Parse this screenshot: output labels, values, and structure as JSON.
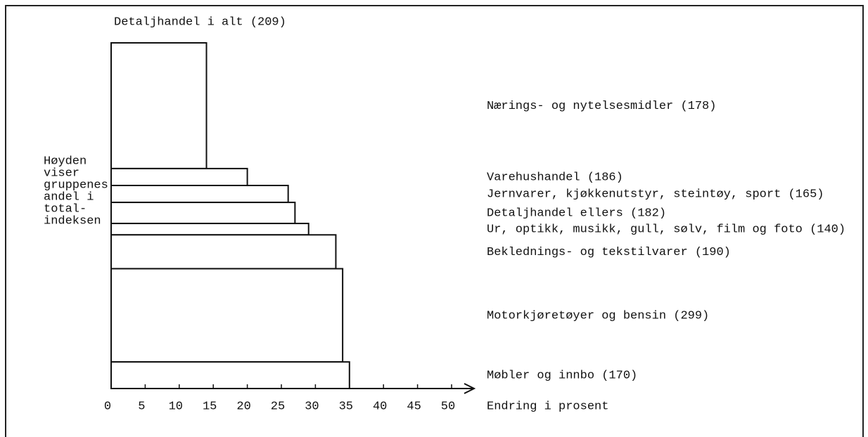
{
  "chart_data": {
    "type": "variable-width-bar",
    "title": "Detaljhandel i alt (209)",
    "annotation": [
      "Høyden",
      "viser",
      "gruppenes",
      "andel i",
      "total-",
      "indeksen"
    ],
    "x_label": "Endring i prosent",
    "categories": [
      "Nærings- og nytelsesmidler (178)",
      "Varehushandel (186)",
      "Jernvarer, kjøkkenutstyr, steintøy, sport (165)",
      "Detaljhandel ellers (182)",
      "Ur, optikk, musikk, gull, sølv, film og foto (140)",
      "Beklednings- og tekstilvarer (190)",
      "Motorkjøretøyer og bensin (299)",
      "Møbler og innbo (170)"
    ],
    "values": [
      14,
      20,
      26,
      27,
      29,
      33,
      34,
      35
    ],
    "weights": [
      36.4,
      4.9,
      4.9,
      6.1,
      3.3,
      9.8,
      27.0,
      7.7
    ],
    "xlim": [
      0,
      50
    ],
    "xticks": [
      0,
      5,
      10,
      15,
      20,
      25,
      30,
      35,
      40,
      45,
      50
    ]
  }
}
